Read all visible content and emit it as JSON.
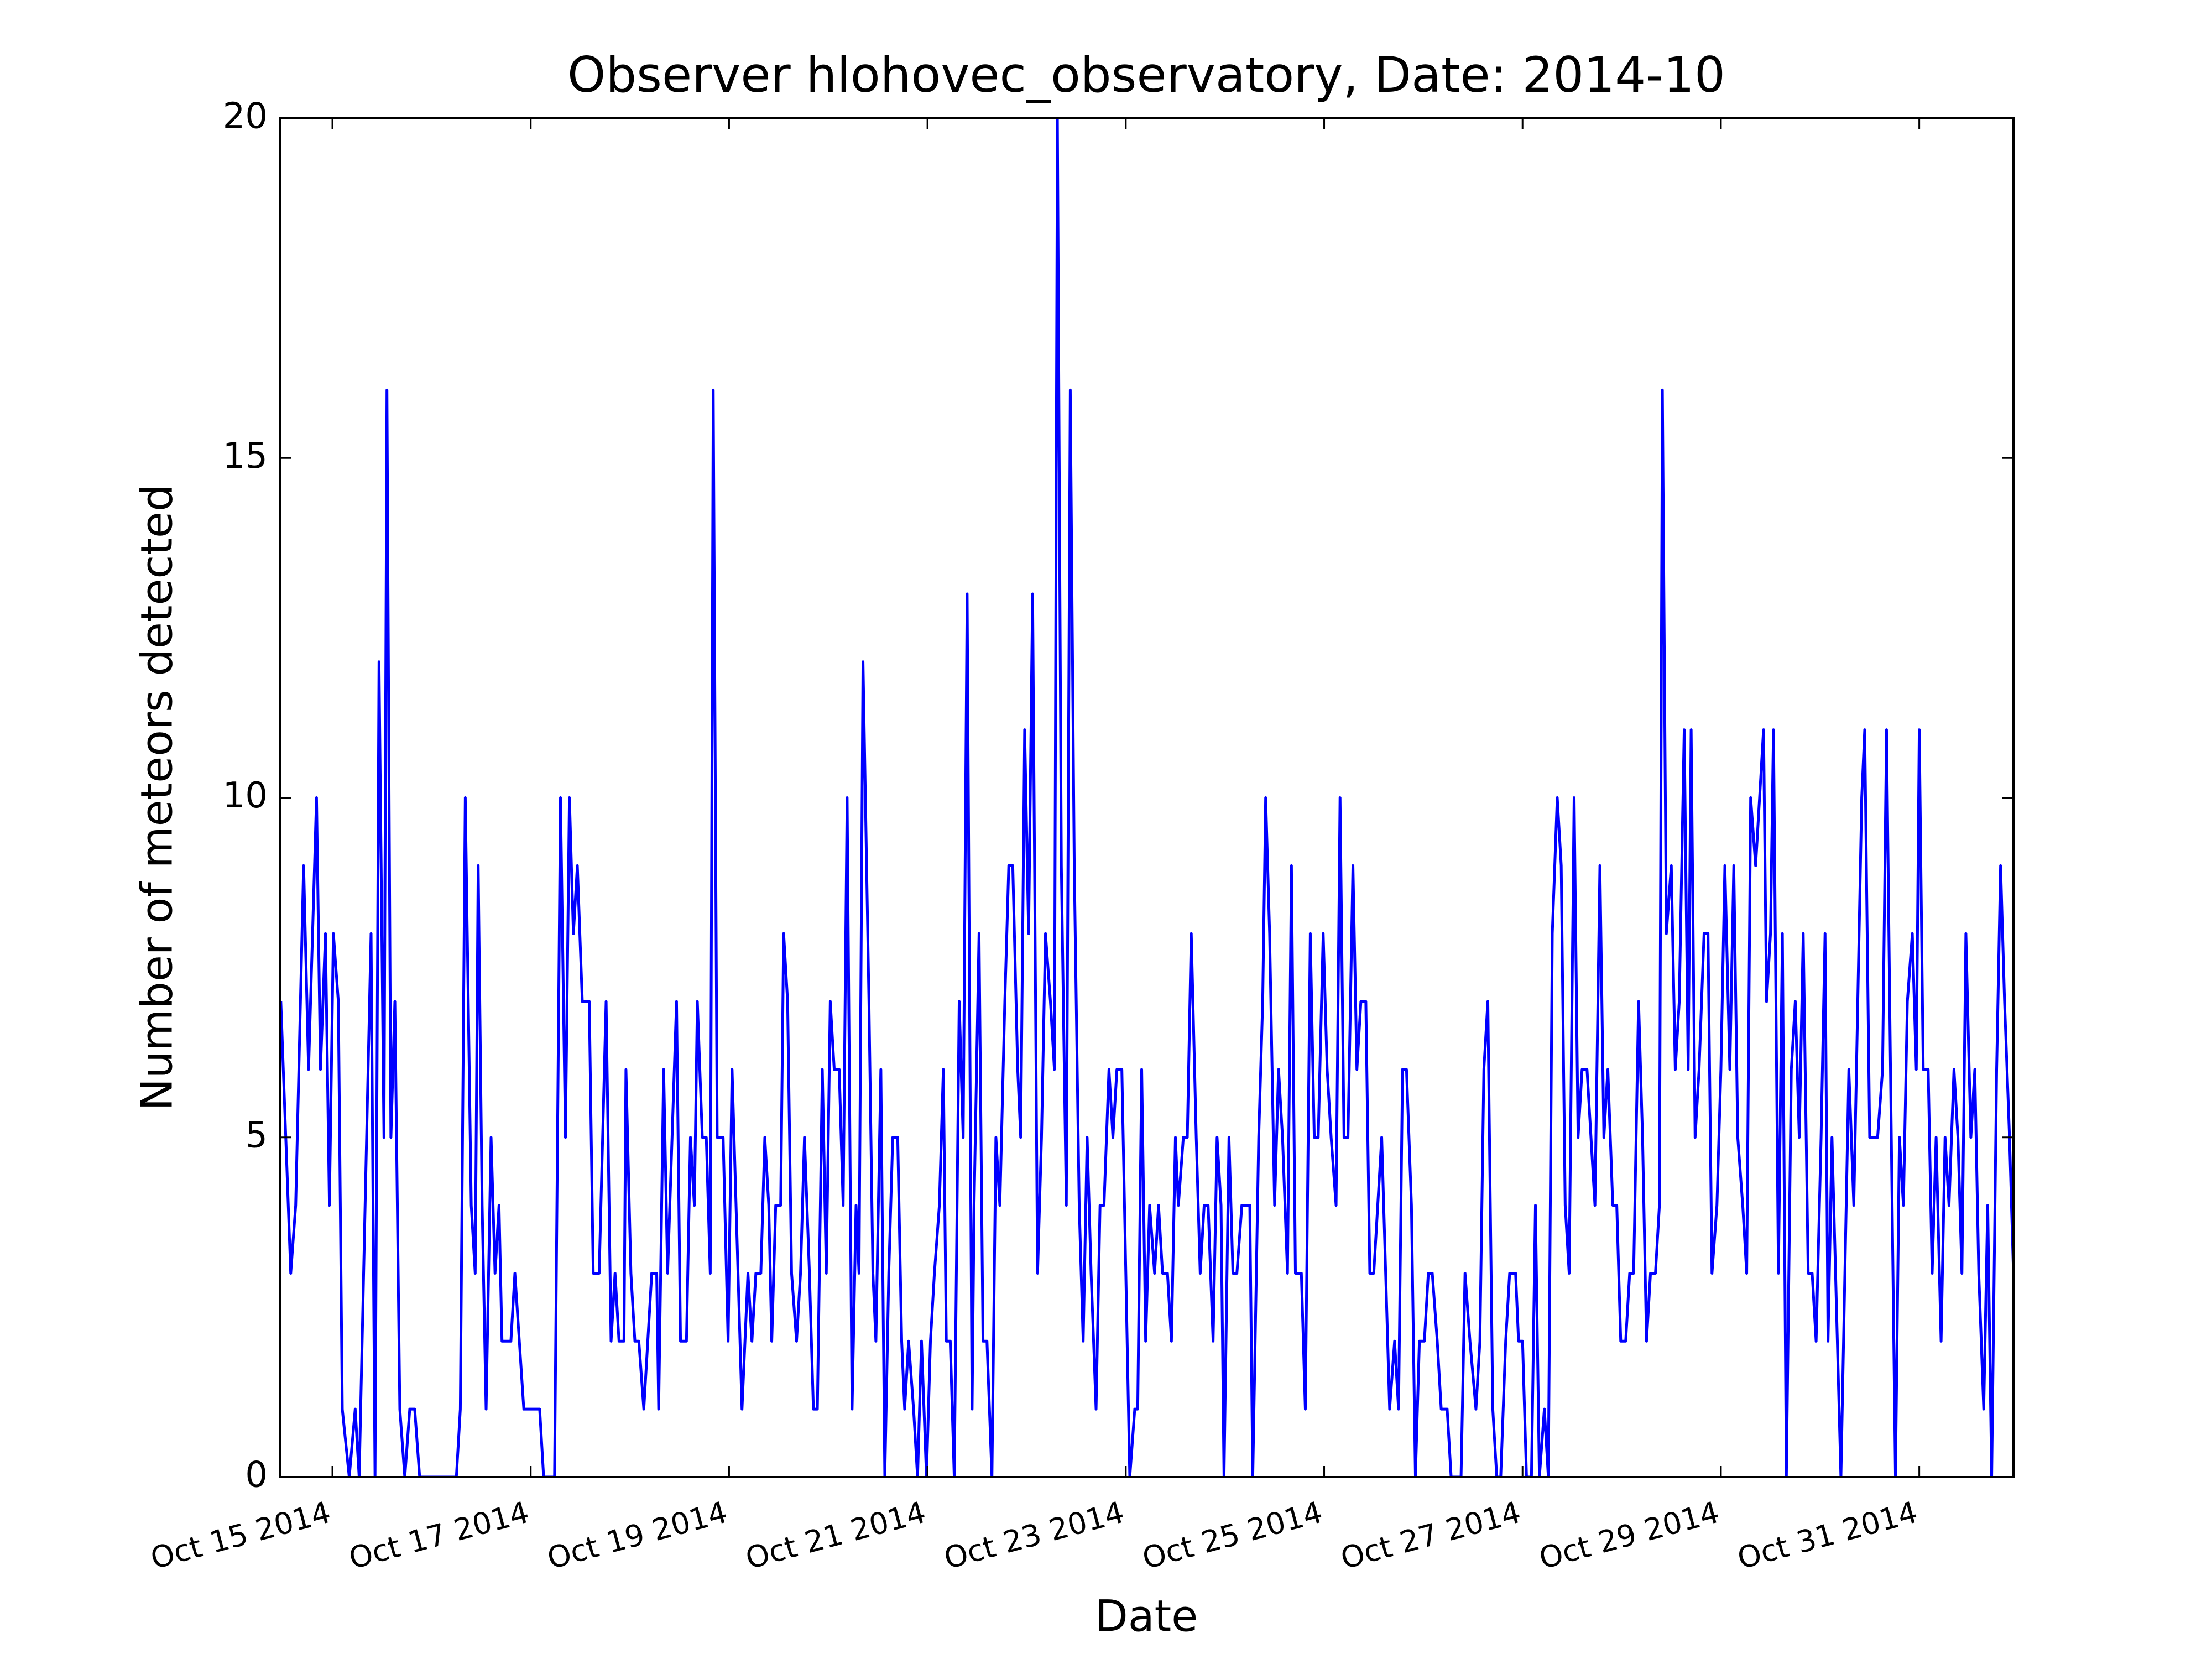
{
  "chart_data": {
    "type": "line",
    "title": "Observer hlohovec_observatory, Date: 2014-10",
    "x_label": "Date",
    "y_label": "Number of meteors detected",
    "color": "#0000ff",
    "x": [
      14.48,
      14.58,
      14.63,
      14.71,
      14.76,
      14.84,
      14.88,
      14.93,
      14.97,
      15.01,
      15.06,
      15.1,
      15.17,
      15.23,
      15.27,
      15.39,
      15.43,
      15.47,
      15.52,
      15.55,
      15.59,
      15.63,
      15.68,
      15.73,
      15.78,
      15.83,
      15.88,
      16.25,
      16.29,
      16.34,
      16.4,
      16.44,
      16.47,
      16.51,
      16.55,
      16.6,
      16.64,
      16.68,
      16.71,
      16.8,
      16.84,
      16.93,
      17.09,
      17.13,
      17.24,
      17.3,
      17.35,
      17.39,
      17.43,
      17.47,
      17.52,
      17.59,
      17.63,
      17.69,
      17.76,
      17.81,
      17.85,
      17.89,
      17.94,
      17.96,
      18.01,
      18.05,
      18.09,
      18.14,
      18.18,
      18.22,
      18.27,
      18.29,
      18.34,
      18.38,
      18.47,
      18.51,
      18.57,
      18.61,
      18.65,
      18.68,
      18.73,
      18.77,
      18.81,
      18.84,
      18.88,
      18.94,
      18.99,
      19.03,
      19.09,
      19.13,
      19.19,
      19.23,
      19.27,
      19.32,
      19.36,
      19.4,
      19.43,
      19.47,
      19.52,
      19.55,
      19.59,
      19.63,
      19.68,
      19.72,
      19.76,
      19.81,
      19.85,
      19.89,
      19.94,
      19.98,
      20.02,
      20.06,
      20.11,
      20.15,
      20.19,
      20.24,
      20.28,
      20.31,
      20.35,
      20.41,
      20.45,
      20.48,
      20.53,
      20.57,
      20.61,
      20.65,
      20.7,
      20.74,
      20.77,
      20.81,
      20.86,
      20.9,
      20.94,
      20.99,
      21.03,
      21.07,
      21.12,
      21.16,
      21.19,
      21.23,
      21.27,
      21.32,
      21.36,
      21.4,
      21.45,
      21.47,
      21.52,
      21.56,
      21.6,
      21.65,
      21.69,
      21.73,
      21.78,
      21.82,
      21.86,
      21.91,
      21.94,
      21.98,
      22.02,
      22.06,
      22.11,
      22.15,
      22.19,
      22.24,
      22.28,
      22.31,
      22.35,
      22.4,
      22.44,
      22.48,
      22.53,
      22.57,
      22.61,
      22.65,
      22.7,
      22.74,
      22.78,
      22.83,
      22.87,
      22.91,
      22.96,
      23.0,
      23.04,
      23.09,
      23.12,
      23.16,
      23.2,
      23.24,
      23.29,
      23.33,
      23.37,
      23.42,
      23.46,
      23.5,
      23.53,
      23.58,
      23.62,
      23.66,
      23.71,
      23.75,
      23.79,
      23.83,
      23.88,
      23.92,
      23.96,
      23.99,
      24.04,
      24.08,
      24.12,
      24.17,
      24.25,
      24.28,
      24.34,
      24.38,
      24.41,
      24.45,
      24.5,
      24.54,
      24.58,
      24.63,
      24.67,
      24.71,
      24.77,
      24.81,
      24.86,
      24.9,
      24.94,
      24.99,
      25.03,
      25.07,
      25.12,
      25.16,
      25.2,
      25.24,
      25.29,
      25.33,
      25.37,
      25.42,
      25.46,
      25.5,
      25.58,
      25.62,
      25.66,
      25.71,
      25.75,
      25.79,
      25.83,
      25.88,
      25.92,
      25.96,
      26.01,
      26.05,
      26.09,
      26.14,
      26.18,
      26.24,
      26.28,
      26.38,
      26.42,
      26.47,
      26.53,
      26.57,
      26.61,
      26.65,
      26.7,
      26.74,
      26.78,
      26.83,
      26.87,
      26.93,
      26.96,
      27.0,
      27.04,
      27.09,
      27.13,
      27.17,
      27.22,
      27.26,
      27.3,
      27.35,
      27.39,
      27.43,
      27.47,
      27.52,
      27.56,
      27.6,
      27.65,
      27.69,
      27.73,
      27.78,
      27.82,
      27.86,
      27.91,
      27.95,
      27.99,
      28.04,
      28.08,
      28.12,
      28.17,
      28.21,
      28.25,
      28.29,
      28.34,
      28.38,
      28.41,
      28.45,
      28.5,
      28.54,
      28.58,
      28.63,
      28.67,
      28.7,
      28.74,
      28.78,
      28.83,
      28.87,
      28.91,
      28.96,
      29.0,
      29.04,
      29.09,
      29.13,
      29.17,
      29.22,
      29.26,
      29.3,
      29.35,
      29.39,
      29.43,
      29.46,
      29.5,
      29.53,
      29.58,
      29.62,
      29.66,
      29.71,
      29.75,
      29.79,
      29.83,
      29.88,
      29.92,
      29.96,
      30.01,
      30.05,
      30.08,
      30.12,
      30.21,
      30.25,
      30.29,
      30.34,
      30.38,
      30.42,
      30.45,
      30.5,
      30.54,
      30.58,
      30.63,
      30.67,
      30.71,
      30.76,
      30.8,
      30.84,
      30.88,
      30.93,
      30.97,
      31.0,
      31.04,
      31.09,
      31.13,
      31.17,
      31.22,
      31.26,
      31.3,
      31.35,
      31.39,
      31.43,
      31.47,
      31.52,
      31.56,
      31.6,
      31.65,
      31.69,
      31.73,
      31.78,
      31.82,
      31.86,
      31.91,
      31.95
    ],
    "values": [
      7,
      3,
      4,
      9,
      6,
      10,
      6,
      8,
      4,
      8,
      7,
      1,
      0,
      1,
      0,
      8,
      0,
      12,
      5,
      16,
      5,
      7,
      1,
      0,
      1,
      1,
      0,
      0,
      1,
      10,
      4,
      3,
      9,
      4,
      1,
      5,
      3,
      4,
      2,
      2,
      3,
      1,
      1,
      0,
      0,
      10,
      5,
      10,
      8,
      9,
      7,
      7,
      3,
      3,
      7,
      2,
      3,
      2,
      2,
      6,
      3,
      2,
      2,
      1,
      2,
      3,
      3,
      1,
      6,
      3,
      7,
      2,
      2,
      5,
      4,
      7,
      5,
      5,
      3,
      16,
      5,
      5,
      2,
      6,
      3,
      1,
      3,
      2,
      3,
      3,
      5,
      4,
      2,
      4,
      4,
      8,
      7,
      3,
      2,
      3,
      5,
      3,
      1,
      1,
      6,
      3,
      7,
      6,
      6,
      4,
      10,
      1,
      4,
      3,
      12,
      7,
      3,
      2,
      6,
      0,
      3,
      5,
      5,
      2,
      1,
      2,
      1,
      0,
      2,
      0,
      2,
      3,
      4,
      6,
      2,
      2,
      0,
      7,
      5,
      13,
      1,
      4,
      8,
      2,
      2,
      0,
      5,
      4,
      7,
      9,
      9,
      6,
      5,
      11,
      8,
      13,
      3,
      5,
      8,
      7,
      6,
      20,
      9,
      4,
      16,
      9,
      4,
      2,
      5,
      3,
      1,
      4,
      4,
      6,
      5,
      6,
      6,
      3,
      0,
      1,
      1,
      6,
      2,
      4,
      3,
      4,
      3,
      3,
      2,
      5,
      4,
      5,
      5,
      8,
      5,
      3,
      4,
      4,
      2,
      5,
      4,
      0,
      5,
      3,
      3,
      4,
      4,
      0,
      5,
      7,
      10,
      8,
      4,
      6,
      5,
      3,
      9,
      3,
      3,
      1,
      8,
      5,
      5,
      8,
      6,
      5,
      4,
      10,
      5,
      5,
      9,
      6,
      7,
      7,
      3,
      3,
      5,
      3,
      1,
      2,
      1,
      6,
      6,
      4,
      0,
      2,
      2,
      3,
      3,
      2,
      1,
      1,
      0,
      0,
      3,
      2,
      1,
      2,
      6,
      7,
      1,
      0,
      0,
      2,
      3,
      3,
      2,
      2,
      0,
      0,
      4,
      0,
      1,
      0,
      8,
      10,
      9,
      4,
      3,
      10,
      5,
      6,
      6,
      5,
      4,
      9,
      5,
      6,
      4,
      4,
      2,
      2,
      3,
      3,
      7,
      5,
      2,
      3,
      3,
      4,
      16,
      8,
      9,
      6,
      7,
      11,
      6,
      11,
      5,
      6,
      8,
      8,
      3,
      4,
      6,
      9,
      6,
      9,
      5,
      4,
      3,
      10,
      9,
      10,
      11,
      7,
      8,
      11,
      3,
      8,
      0,
      6,
      7,
      5,
      8,
      3,
      3,
      2,
      5,
      8,
      2,
      5,
      0,
      3,
      6,
      4,
      7,
      10,
      11,
      5,
      5,
      5,
      6,
      11,
      6,
      0,
      5,
      4,
      7,
      8,
      6,
      11,
      6,
      6,
      3,
      5,
      2,
      5,
      4,
      6,
      5,
      3,
      8,
      5,
      6,
      3,
      1,
      4,
      0,
      6,
      9,
      7,
      5,
      3
    ],
    "xlim": [
      14.47,
      31.95
    ],
    "xticks": [
      {
        "value": 15,
        "label": "Oct 15 2014"
      },
      {
        "value": 17,
        "label": "Oct 17 2014"
      },
      {
        "value": 19,
        "label": "Oct 19 2014"
      },
      {
        "value": 21,
        "label": "Oct 21 2014"
      },
      {
        "value": 23,
        "label": "Oct 23 2014"
      },
      {
        "value": 25,
        "label": "Oct 25 2014"
      },
      {
        "value": 27,
        "label": "Oct 27 2014"
      },
      {
        "value": 29,
        "label": "Oct 29 2014"
      },
      {
        "value": 31,
        "label": "Oct 31 2014"
      }
    ],
    "ylim": [
      0,
      20
    ],
    "yticks": [
      0,
      5,
      10,
      15,
      20
    ]
  }
}
